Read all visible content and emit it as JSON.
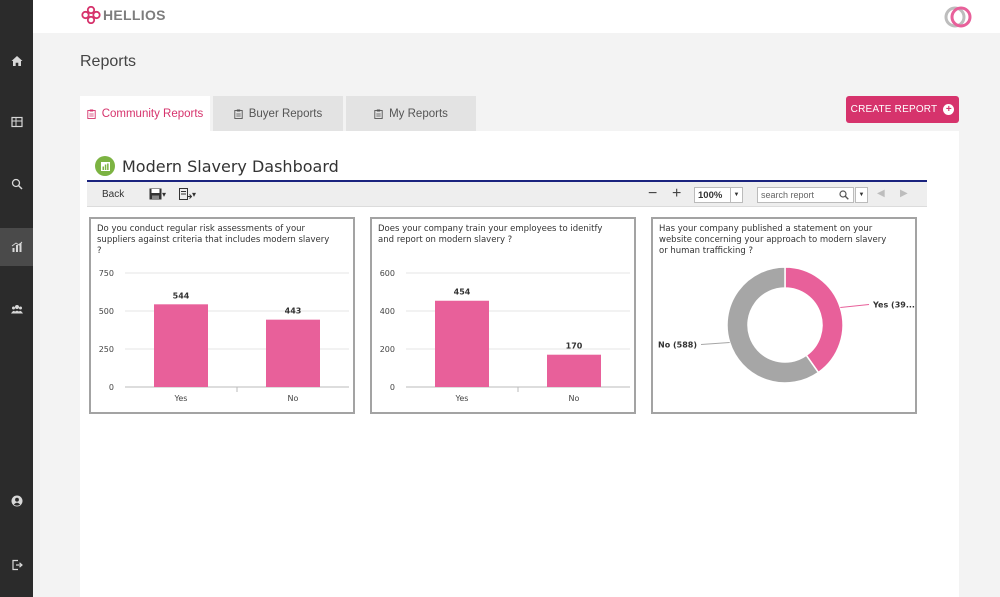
{
  "app": {
    "logo_text": "HELLIOS"
  },
  "sidebar": {
    "items": [
      {
        "icon": "home-icon"
      },
      {
        "icon": "table-icon"
      },
      {
        "icon": "search-icon"
      },
      {
        "icon": "chart-icon",
        "active": true
      },
      {
        "icon": "users-icon"
      },
      {
        "icon": "account-icon"
      },
      {
        "icon": "logout-icon"
      }
    ]
  },
  "page": {
    "title": "Reports"
  },
  "tabs": [
    {
      "label": "Community Reports",
      "active": true
    },
    {
      "label": "Buyer Reports"
    },
    {
      "label": "My Reports"
    }
  ],
  "create_button": {
    "label": "CREATE REPORT"
  },
  "dashboard": {
    "title": "Modern Slavery Dashboard",
    "toolbar": {
      "back_label": "Back",
      "zoom_value": "100%",
      "search_placeholder": "search report"
    }
  },
  "colors": {
    "accent": "#d6336c",
    "bar": "#e8609a",
    "pie_no": "#a6a6a6",
    "rule": "#1a237e"
  },
  "chart_data": [
    {
      "type": "bar",
      "title": "Do you conduct regular risk assessments of your suppliers against criteria that includes modern slavery ?",
      "categories": [
        "Yes",
        "No"
      ],
      "values": [
        544,
        443
      ],
      "yticks": [
        "750",
        "500",
        "250",
        "0"
      ],
      "ylim": [
        0,
        750
      ]
    },
    {
      "type": "bar",
      "title": "Does your company train your employees to idenitfy and report on modern slavery ?",
      "categories": [
        "Yes",
        "No"
      ],
      "values": [
        454,
        170
      ],
      "yticks": [
        "600",
        "400",
        "200",
        "0"
      ],
      "ylim": [
        0,
        600
      ]
    },
    {
      "type": "pie",
      "title": "Has your company published a statement on your website concerning your approach to modern slavery or human trafficking ?",
      "categories": [
        "Yes",
        "No"
      ],
      "values": [
        396,
        588
      ],
      "labels": [
        "Yes (39...",
        "No (588)"
      ]
    }
  ]
}
